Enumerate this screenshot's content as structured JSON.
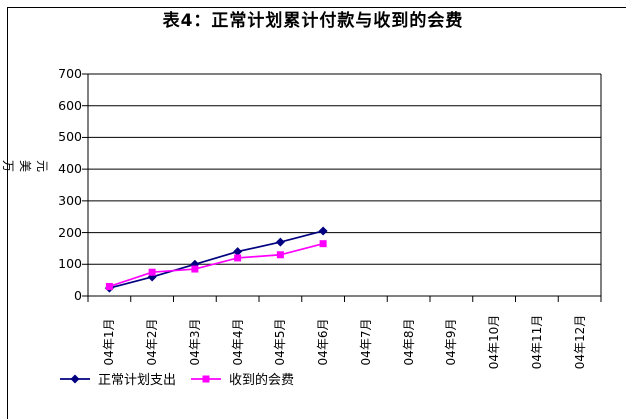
{
  "window": {
    "background": "#ffffff",
    "frame_color": "#000000"
  },
  "title": "表4：正常计划累计付款与收到的会费",
  "y_axis": {
    "unit_label": "万美元",
    "unit_chars": [
      "万",
      "美",
      "元"
    ],
    "tick_labels": [
      "700",
      "600",
      "500",
      "400",
      "300",
      "200",
      "100",
      "0"
    ]
  },
  "chart_data": {
    "type": "line",
    "title": "表4：正常计划累计付款与收到的会费",
    "ylabel": "万美元",
    "xlabel": "",
    "ylim": [
      0,
      700
    ],
    "y_step": 100,
    "grid": true,
    "legend_position": "bottom",
    "categories": [
      "04年1月",
      "04年2月",
      "04年3月",
      "04年4月",
      "04年5月",
      "04年6月",
      "04年7月",
      "04年8月",
      "04年9月",
      "04年10月",
      "04年11月",
      "04年12月"
    ],
    "series": [
      {
        "name": "正常计划支出",
        "color": "#000080",
        "marker": "diamond",
        "values": [
          25,
          60,
          100,
          140,
          170,
          205
        ]
      },
      {
        "name": "收到的会费",
        "color": "#FF00FF",
        "marker": "square",
        "values": [
          30,
          75,
          85,
          120,
          130,
          165
        ]
      }
    ]
  }
}
